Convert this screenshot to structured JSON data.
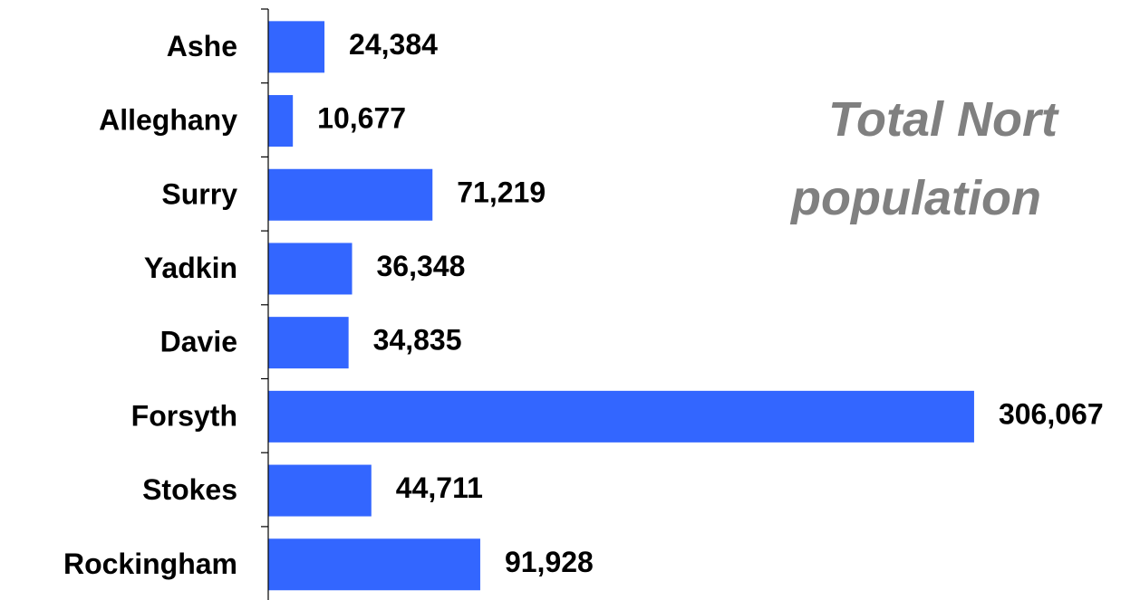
{
  "chart_data": {
    "type": "bar",
    "orientation": "horizontal",
    "title_lines": [
      "Total Nort",
      "population"
    ],
    "categories": [
      "Ashe",
      "Alleghany",
      "Surry",
      "Yadkin",
      "Davie",
      "Forsyth",
      "Stokes",
      "Rockingham"
    ],
    "values": [
      24384,
      10677,
      71219,
      36348,
      34835,
      306067,
      44711,
      91928
    ],
    "value_labels": [
      "24,384",
      "10,677",
      "71,219",
      "36,348",
      "34,835",
      "306,067",
      "44,711",
      "91,928"
    ],
    "xlabel": "",
    "ylabel": "",
    "grid": false,
    "legend": "none",
    "bar_color": "#3366FF",
    "title_color": "#808080"
  }
}
